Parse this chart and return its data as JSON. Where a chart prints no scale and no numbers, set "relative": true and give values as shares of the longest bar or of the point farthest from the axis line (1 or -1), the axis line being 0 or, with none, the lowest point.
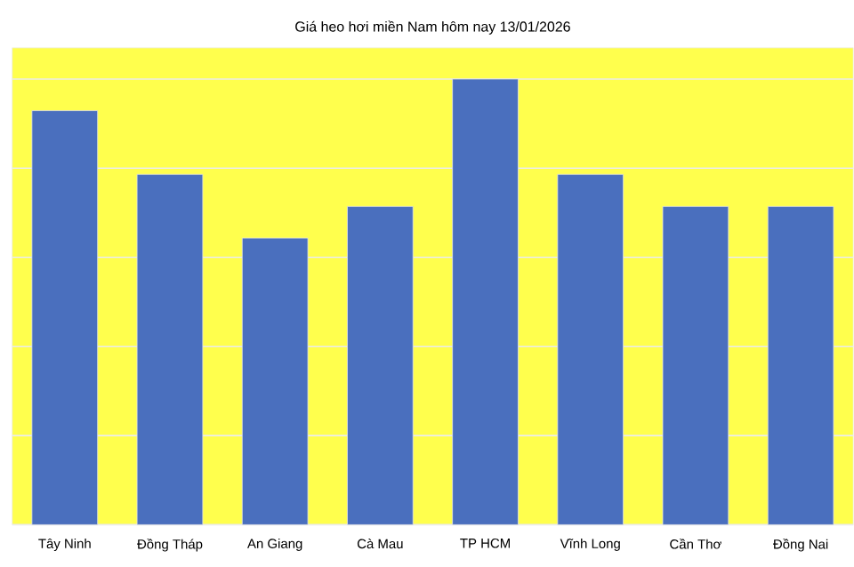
{
  "chart_data": {
    "type": "bar",
    "title": "Giá heo hơi miền Nam hôm nay 13/01/2026",
    "categories": [
      "Tây Ninh",
      "Đồng Tháp",
      "An Giang",
      "Cà Mau",
      "TP HCM",
      "Vĩnh Long",
      "Cần Thơ",
      "Đồng Nai"
    ],
    "values": [
      0.929,
      0.786,
      0.643,
      0.714,
      1,
      0.786,
      0.714,
      0.714
    ],
    "color": "#4a6fbe",
    "relative": true,
    "grid": "y"
  }
}
